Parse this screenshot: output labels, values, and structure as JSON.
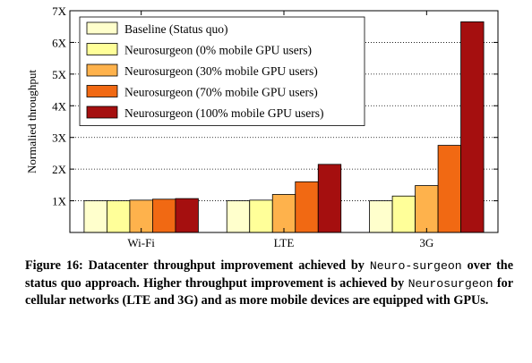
{
  "chart_data": {
    "type": "bar",
    "categories": [
      "Wi-Fi",
      "LTE",
      "3G"
    ],
    "ylabel": "Normalied throughput",
    "ylim": [
      0,
      7
    ],
    "yticks": [
      "",
      "1X",
      "2X",
      "3X",
      "4X",
      "5X",
      "6X",
      "7X"
    ],
    "grid": "horizontal-dotted",
    "legend_position": "top-left",
    "series": [
      {
        "name": "Baseline (Status quo)",
        "color": "#ffffcc",
        "values": [
          1.0,
          1.0,
          1.0
        ]
      },
      {
        "name": "Neurosurgeon (0% mobile GPU users)",
        "color": "#ffff99",
        "values": [
          1.0,
          1.02,
          1.15
        ]
      },
      {
        "name": "Neurosurgeon (30% mobile GPU users)",
        "color": "#feb24c",
        "values": [
          1.02,
          1.2,
          1.48
        ]
      },
      {
        "name": "Neurosurgeon (70% mobile GPU users)",
        "color": "#f16913",
        "values": [
          1.05,
          1.6,
          2.75
        ]
      },
      {
        "name": "Neurosurgeon (100% mobile GPU users)",
        "color": "#a50f0f",
        "values": [
          1.07,
          2.15,
          6.65
        ]
      }
    ]
  },
  "caption": {
    "part1": "Figure 16: Datacenter throughput improvement achieved by ",
    "mono1": "Neuro-surgeon",
    "part2": " over the status quo approach. Higher throughput improvement is achieved by ",
    "mono2": "Neurosurgeon",
    "part3": " for cellular networks (LTE and 3G) and as more mobile devices are equipped with GPUs."
  }
}
